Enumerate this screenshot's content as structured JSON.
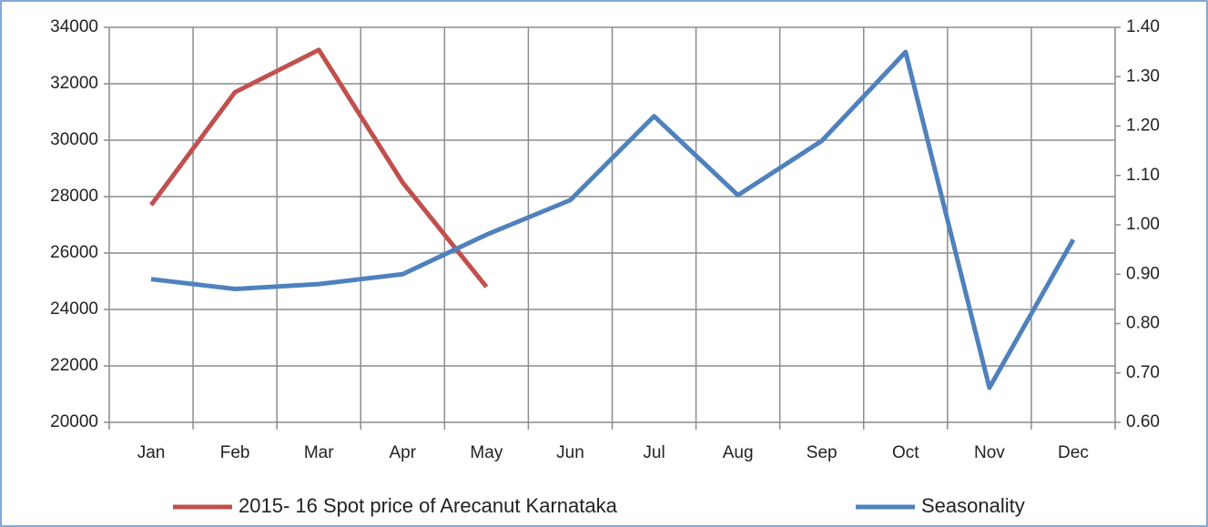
{
  "chart_data": {
    "type": "line",
    "categories": [
      "Jan",
      "Feb",
      "Mar",
      "Apr",
      "May",
      "Jun",
      "Jul",
      "Aug",
      "Sep",
      "Oct",
      "Nov",
      "Dec"
    ],
    "series": [
      {
        "name": "2015- 16 Spot price of Arecanut Karnataka",
        "color": "#c0504d",
        "values": [
          27700,
          31700,
          33200,
          28500,
          24800,
          null,
          null,
          null,
          null,
          null,
          null,
          null
        ]
      },
      {
        "name": "Seasonality",
        "color": "#4f81bd",
        "axis": "y2",
        "values": [
          0.89,
          0.87,
          0.88,
          0.9,
          0.98,
          1.05,
          1.22,
          1.06,
          1.17,
          1.35,
          0.67,
          0.97
        ]
      }
    ],
    "ylim": [
      20000,
      34000
    ],
    "yticks": [
      20000,
      22000,
      24000,
      26000,
      28000,
      30000,
      32000,
      34000
    ],
    "y2lim": [
      0.6,
      1.4
    ],
    "y2ticks": [
      {
        "value": 0.6,
        "label": "0.60"
      },
      {
        "value": 0.7,
        "label": "0.70"
      },
      {
        "value": 0.8,
        "label": "0.80"
      },
      {
        "value": 0.9,
        "label": "0.90"
      },
      {
        "value": 1.0,
        "label": "1.00"
      },
      {
        "value": 1.1,
        "label": "1.10"
      },
      {
        "value": 1.2,
        "label": "1.20"
      },
      {
        "value": 1.3,
        "label": "1.30"
      },
      {
        "value": 1.4,
        "label": "1.40"
      }
    ],
    "grid": true,
    "legend": "bottom"
  }
}
